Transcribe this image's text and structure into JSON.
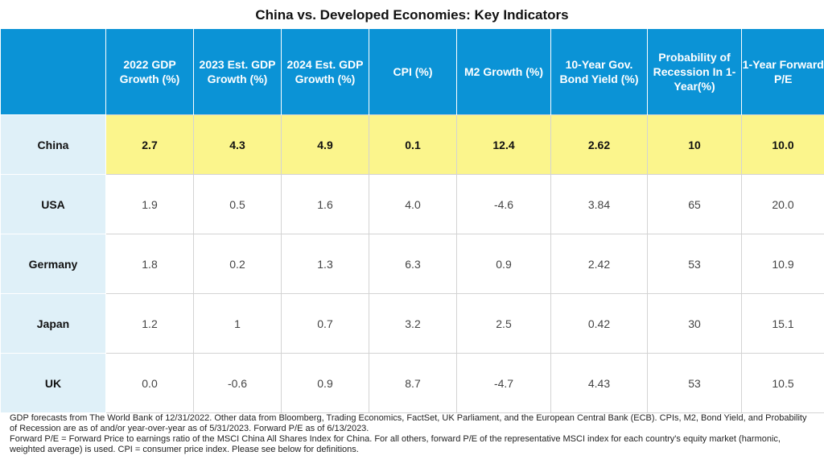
{
  "chart_data": {
    "type": "table",
    "title": "China vs. Developed Economies: Key Indicators",
    "columns": [
      "",
      "2022 GDP Growth (%)",
      "2023 Est. GDP Growth (%)",
      "2024 Est. GDP Growth (%)",
      "CPI (%)",
      "M2 Growth (%)",
      "10-Year Gov. Bond Yield (%)",
      "Probability of Recession In 1-Year(%)",
      "1-Year Forward P/E"
    ],
    "rows": [
      {
        "country": "China",
        "values": [
          "2.7",
          "4.3",
          "4.9",
          "0.1",
          "12.4",
          "2.62",
          "10",
          "10.0"
        ],
        "highlight": true
      },
      {
        "country": "USA",
        "values": [
          "1.9",
          "0.5",
          "1.6",
          "4.0",
          "-4.6",
          "3.84",
          "65",
          "20.0"
        ],
        "highlight": false
      },
      {
        "country": "Germany",
        "values": [
          "1.8",
          "0.2",
          "1.3",
          "6.3",
          "0.9",
          "2.42",
          "53",
          "10.9"
        ],
        "highlight": false
      },
      {
        "country": "Japan",
        "values": [
          "1.2",
          "1",
          "0.7",
          "3.2",
          "2.5",
          "0.42",
          "30",
          "15.1"
        ],
        "highlight": false
      },
      {
        "country": "UK",
        "values": [
          "0.0",
          "-0.6",
          "0.9",
          "8.7",
          "-4.7",
          "4.43",
          "53",
          "10.5"
        ],
        "highlight": false
      }
    ],
    "highlight_color": "#fbf58c",
    "header_color": "#0b93d6",
    "country_column_color": "#dff0f8"
  },
  "footnotes": [
    "GDP forecasts from The World Bank of 12/31/2022. Other data from Bloomberg, Trading Economics, FactSet, UK Parliament, and the European Central Bank (ECB). CPIs, M2, Bond Yield, and Probability of Recession are as of and/or year-over-year as of 5/31/2023. Forward P/E as of 6/13/2023.",
    "Forward P/E = Forward Price to earnings ratio of the MSCI China All Shares Index for China. For all others, forward P/E of the representative MSCI index for each country's equity market (harmonic, weighted average) is used. CPI = consumer price index. Please see below for definitions."
  ]
}
